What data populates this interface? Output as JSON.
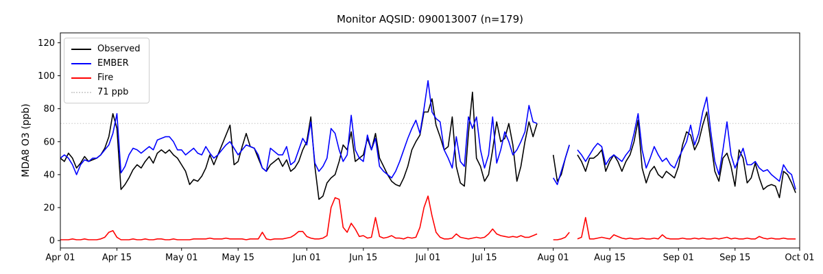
{
  "chart_data": {
    "type": "line",
    "title": "Monitor AQSID: 090013007 (n=179)",
    "ylabel": "MDA8 O3 (ppb)",
    "xlabel": "",
    "grid": false,
    "legend_position": "upper left",
    "ylim": [
      -4.5,
      126
    ],
    "yticks": [
      0,
      20,
      40,
      60,
      80,
      100,
      120
    ],
    "x_unit": "day",
    "x_start_label": "Apr 01",
    "x_end_label": "Sep 30",
    "x_total_days": 183,
    "n_points": 179,
    "xticks": [
      {
        "day": 0,
        "label": "Apr 01"
      },
      {
        "day": 14,
        "label": "Apr 15"
      },
      {
        "day": 30,
        "label": "May 01"
      },
      {
        "day": 44,
        "label": "May 15"
      },
      {
        "day": 61,
        "label": "Jun 01"
      },
      {
        "day": 75,
        "label": "Jun 15"
      },
      {
        "day": 91,
        "label": "Jul 01"
      },
      {
        "day": 105,
        "label": "Jul 15"
      },
      {
        "day": 122,
        "label": "Aug 01"
      },
      {
        "day": 136,
        "label": "Aug 15"
      },
      {
        "day": 153,
        "label": "Sep 01"
      },
      {
        "day": 167,
        "label": "Sep 15"
      },
      {
        "day": 183,
        "label": "Oct 01"
      }
    ],
    "threshold": {
      "value": 71,
      "label": "71 ppb",
      "color": "#d3d3d3",
      "style": "dotted"
    },
    "series": [
      {
        "name": "Observed",
        "color": "#000000",
        "values": [
          50,
          48,
          53,
          50,
          44,
          47,
          51,
          48,
          49,
          50,
          52,
          56,
          63,
          77,
          68,
          31,
          34,
          38,
          43,
          46,
          44,
          48,
          51,
          47,
          53,
          55,
          53,
          55,
          52,
          50,
          46,
          42,
          34,
          37,
          36,
          39,
          44,
          52,
          46,
          52,
          58,
          64,
          70,
          46,
          48,
          57,
          65,
          57,
          56,
          50,
          44,
          42,
          46,
          48,
          50,
          45,
          49,
          42,
          44,
          48,
          55,
          60,
          75,
          45,
          25,
          27,
          35,
          38,
          40,
          48,
          58,
          55,
          66,
          48,
          50,
          52,
          62,
          55,
          65,
          50,
          45,
          40,
          36,
          34,
          33,
          38,
          45,
          55,
          60,
          64,
          78,
          78,
          86,
          70,
          63,
          55,
          57,
          75,
          45,
          35,
          33,
          65,
          90,
          50,
          45,
          36,
          40,
          55,
          72,
          60,
          62,
          71,
          58,
          36,
          45,
          60,
          72,
          63,
          71,
          null,
          null,
          null,
          52,
          36,
          40,
          50,
          58,
          null,
          52,
          48,
          42,
          50,
          50,
          52,
          55,
          42,
          48,
          52,
          48,
          42,
          48,
          52,
          60,
          73,
          44,
          35,
          42,
          45,
          40,
          38,
          42,
          40,
          38,
          45,
          58,
          66,
          64,
          55,
          60,
          70,
          78,
          60,
          42,
          36,
          50,
          53,
          45,
          33,
          55,
          50,
          35,
          38,
          47,
          38,
          31,
          33,
          34,
          33,
          26,
          42,
          40,
          35,
          29
        ]
      },
      {
        "name": "EMBER",
        "color": "#0000ff",
        "values": [
          50,
          52,
          50,
          46,
          40,
          46,
          49,
          48,
          50,
          50,
          52,
          55,
          58,
          65,
          77,
          41,
          45,
          52,
          56,
          55,
          53,
          55,
          57,
          55,
          61,
          62,
          63,
          63,
          60,
          55,
          55,
          52,
          54,
          56,
          53,
          52,
          57,
          53,
          50,
          52,
          55,
          58,
          60,
          56,
          52,
          55,
          58,
          57,
          56,
          52,
          44,
          42,
          56,
          54,
          52,
          52,
          57,
          46,
          48,
          55,
          62,
          58,
          72,
          47,
          42,
          45,
          50,
          68,
          65,
          55,
          48,
          52,
          76,
          55,
          50,
          48,
          64,
          55,
          62,
          45,
          42,
          40,
          38,
          42,
          48,
          55,
          62,
          68,
          73,
          65,
          80,
          97,
          78,
          74,
          72,
          55,
          50,
          44,
          63,
          48,
          45,
          75,
          68,
          75,
          55,
          44,
          52,
          75,
          47,
          55,
          66,
          60,
          52,
          55,
          60,
          66,
          82,
          72,
          71,
          null,
          null,
          null,
          38,
          34,
          42,
          50,
          58,
          null,
          55,
          52,
          48,
          52,
          56,
          59,
          57,
          46,
          50,
          52,
          50,
          48,
          52,
          55,
          65,
          77,
          55,
          44,
          50,
          57,
          52,
          48,
          50,
          46,
          44,
          50,
          55,
          60,
          70,
          58,
          65,
          78,
          87,
          66,
          48,
          40,
          55,
          72,
          52,
          44,
          50,
          56,
          46,
          46,
          48,
          44,
          42,
          43,
          40,
          38,
          36,
          46,
          42,
          40,
          31
        ]
      },
      {
        "name": "Fire",
        "color": "#ff0000",
        "values": [
          0.5,
          0.5,
          0.5,
          1,
          0.5,
          0.5,
          1,
          0.5,
          0.5,
          0.5,
          1,
          2,
          5,
          6,
          2,
          0.5,
          0.5,
          0.5,
          1,
          0.5,
          0.5,
          1,
          0.5,
          0.5,
          1,
          1,
          0.5,
          0.5,
          1,
          0.5,
          0.5,
          0.5,
          0.5,
          1,
          1,
          1,
          1,
          1.5,
          1,
          1,
          1,
          1.5,
          1,
          1,
          1,
          1,
          0.5,
          1,
          1,
          1,
          5,
          1,
          0.5,
          1,
          1,
          1,
          1.5,
          2,
          3.5,
          5.5,
          5.5,
          2.5,
          1.5,
          1,
          1,
          1.5,
          3,
          20,
          26,
          25,
          8,
          5,
          10.5,
          7,
          2.5,
          3,
          1.5,
          2,
          14,
          2.5,
          1.5,
          2,
          3,
          1.5,
          1.5,
          1,
          2,
          1.5,
          2,
          8,
          20,
          27,
          15,
          5,
          2,
          1,
          1,
          1.5,
          4,
          2,
          1.5,
          1,
          1.5,
          2,
          1.5,
          2,
          4,
          7,
          4,
          3,
          2.5,
          2,
          2.5,
          2,
          3,
          2,
          2,
          3,
          4,
          null,
          null,
          null,
          0.5,
          0.5,
          1,
          2,
          5,
          null,
          1,
          2,
          14,
          1,
          1,
          1.5,
          2,
          1.5,
          1,
          3.5,
          2.5,
          1.5,
          1,
          1.5,
          1,
          1,
          1.5,
          1,
          1,
          1.5,
          1,
          3.5,
          1.5,
          1,
          1,
          1,
          1.5,
          1,
          1,
          1.5,
          1,
          1.5,
          1,
          1,
          1.5,
          1,
          1.5,
          2,
          1,
          1.5,
          1,
          1,
          1.5,
          1,
          1,
          2.5,
          1.5,
          1,
          1.5,
          1,
          1,
          1.5,
          1,
          1,
          1
        ]
      }
    ],
    "legend": {
      "observed_label": "Observed",
      "ember_label": "EMBER",
      "fire_label": "Fire",
      "threshold_label": "71 ppb"
    }
  }
}
